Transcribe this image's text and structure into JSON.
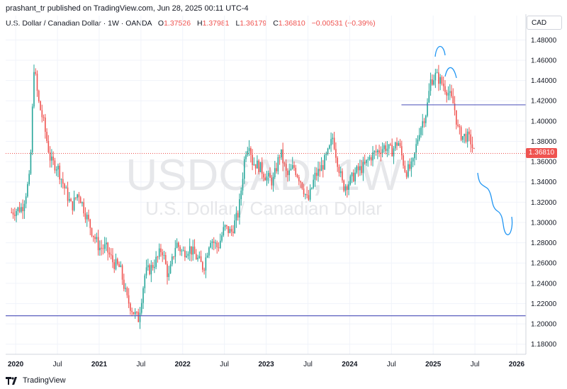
{
  "header": {
    "published": "prashant_tr published on TradingView.com, Jun 28, 2025 00:11 UTC-4"
  },
  "legend": {
    "symbol": "U.S. Dollar / Canadian Dollar · 1W · OANDA",
    "open_label": "O",
    "open": "1.37526",
    "high_label": "H",
    "high": "1.37981",
    "low_label": "L",
    "low": "1.36179",
    "close_label": "C",
    "close": "1.36810",
    "change": "−0.00531 (−0.39%)"
  },
  "currency_button": "CAD",
  "last_price_tag": "1.36810",
  "watermark": {
    "ticker": "USDCAD, 1W",
    "name": "U.S. Dollar / Canadian Dollar"
  },
  "footer": {
    "brand": "TradingView"
  },
  "colors": {
    "up": "#26a69a",
    "down": "#ef5350",
    "grid": "#f0f3fa",
    "hline": "#5b5fbf",
    "drawing": "#2196f3",
    "price_line": "#ef5350"
  },
  "chart_data": {
    "type": "candlestick",
    "symbol": "USDCAD",
    "interval": "1W",
    "ylim": [
      1.17,
      1.49
    ],
    "y_ticks": [
      "1.48000",
      "1.46000",
      "1.44000",
      "1.42000",
      "1.40000",
      "1.38000",
      "1.36000",
      "1.34000",
      "1.32000",
      "1.30000",
      "1.28000",
      "1.26000",
      "1.24000",
      "1.22000",
      "1.20000",
      "1.18000"
    ],
    "x_ticks": [
      "2020",
      "Jul",
      "2021",
      "Jul",
      "2022",
      "Jul",
      "2023",
      "Jul",
      "2024",
      "Jul",
      "2025",
      "Jul",
      "2026"
    ],
    "horizontal_lines": [
      1.416,
      1.208
    ],
    "last_close": 1.3681,
    "weekly_close_path": [
      [
        2019.95,
        1.31
      ],
      [
        2020.08,
        1.315
      ],
      [
        2020.17,
        1.345
      ],
      [
        2020.22,
        1.455
      ],
      [
        2020.27,
        1.42
      ],
      [
        2020.33,
        1.4
      ],
      [
        2020.42,
        1.36
      ],
      [
        2020.5,
        1.355
      ],
      [
        2020.58,
        1.335
      ],
      [
        2020.67,
        1.315
      ],
      [
        2020.75,
        1.33
      ],
      [
        2020.83,
        1.31
      ],
      [
        2020.92,
        1.29
      ],
      [
        2021.0,
        1.275
      ],
      [
        2021.08,
        1.275
      ],
      [
        2021.17,
        1.26
      ],
      [
        2021.25,
        1.255
      ],
      [
        2021.33,
        1.225
      ],
      [
        2021.42,
        1.21
      ],
      [
        2021.47,
        1.205
      ],
      [
        2021.55,
        1.25
      ],
      [
        2021.62,
        1.255
      ],
      [
        2021.7,
        1.265
      ],
      [
        2021.75,
        1.275
      ],
      [
        2021.83,
        1.245
      ],
      [
        2021.92,
        1.28
      ],
      [
        2022.0,
        1.27
      ],
      [
        2022.08,
        1.275
      ],
      [
        2022.17,
        1.265
      ],
      [
        2022.25,
        1.255
      ],
      [
        2022.33,
        1.285
      ],
      [
        2022.42,
        1.275
      ],
      [
        2022.5,
        1.295
      ],
      [
        2022.58,
        1.29
      ],
      [
        2022.67,
        1.31
      ],
      [
        2022.75,
        1.37
      ],
      [
        2022.8,
        1.38
      ],
      [
        2022.83,
        1.36
      ],
      [
        2022.92,
        1.355
      ],
      [
        2023.0,
        1.345
      ],
      [
        2023.08,
        1.34
      ],
      [
        2023.17,
        1.37
      ],
      [
        2023.25,
        1.345
      ],
      [
        2023.33,
        1.355
      ],
      [
        2023.42,
        1.34
      ],
      [
        2023.5,
        1.32
      ],
      [
        2023.58,
        1.345
      ],
      [
        2023.67,
        1.355
      ],
      [
        2023.75,
        1.37
      ],
      [
        2023.8,
        1.385
      ],
      [
        2023.83,
        1.37
      ],
      [
        2023.92,
        1.335
      ],
      [
        2024.0,
        1.34
      ],
      [
        2024.08,
        1.35
      ],
      [
        2024.17,
        1.355
      ],
      [
        2024.25,
        1.365
      ],
      [
        2024.33,
        1.37
      ],
      [
        2024.42,
        1.375
      ],
      [
        2024.5,
        1.37
      ],
      [
        2024.58,
        1.38
      ],
      [
        2024.67,
        1.35
      ],
      [
        2024.75,
        1.355
      ],
      [
        2024.83,
        1.39
      ],
      [
        2024.92,
        1.41
      ],
      [
        2024.97,
        1.44
      ],
      [
        2025.03,
        1.445
      ],
      [
        2025.08,
        1.44
      ],
      [
        2025.17,
        1.43
      ],
      [
        2025.25,
        1.415
      ],
      [
        2025.3,
        1.39
      ],
      [
        2025.35,
        1.385
      ],
      [
        2025.4,
        1.385
      ],
      [
        2025.45,
        1.38
      ],
      [
        2025.49,
        1.368
      ]
    ]
  }
}
